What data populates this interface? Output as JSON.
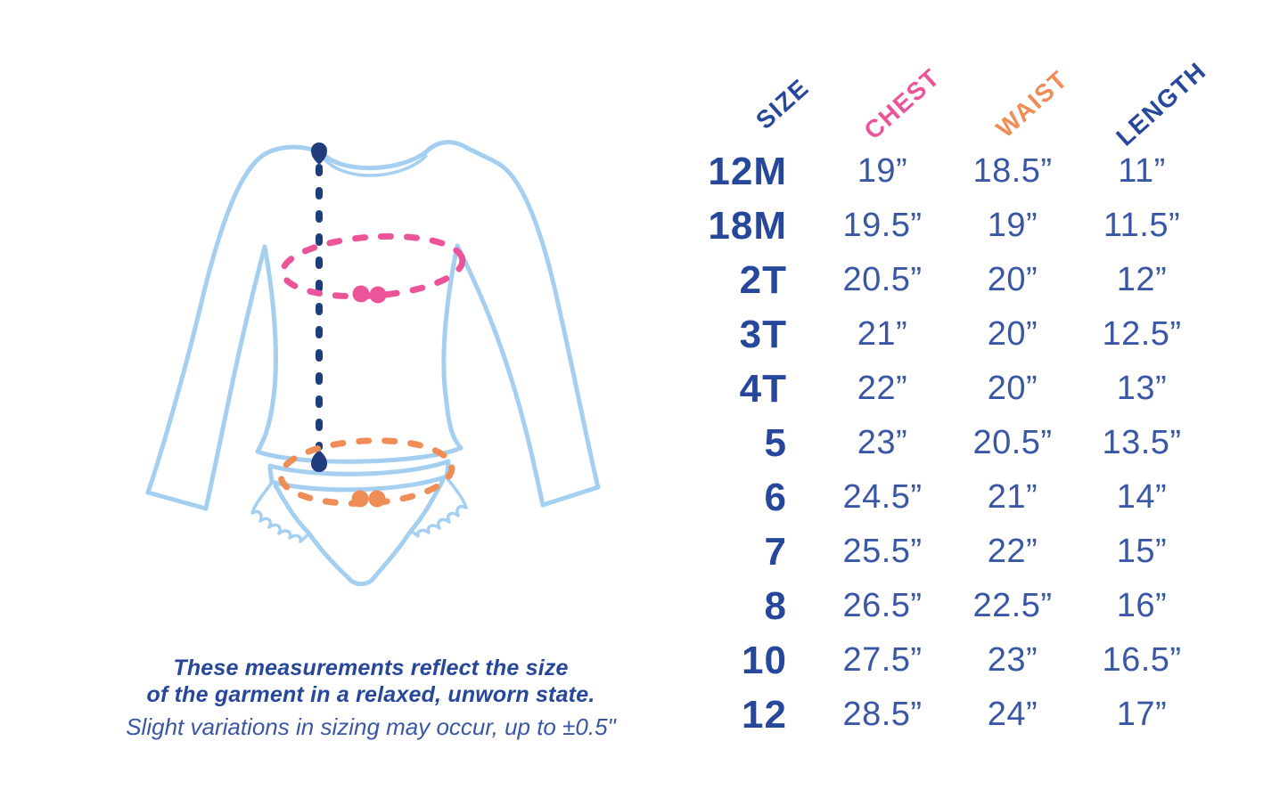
{
  "colors": {
    "navy": "#27479B",
    "value_blue": "#3A57A5",
    "dash_navy": "#1F3C7D",
    "pink": "#EC549A",
    "orange": "#F08C55",
    "light_blue": "#A5CFF1"
  },
  "chart_data": {
    "type": "table",
    "columns": [
      {
        "label": "SIZE",
        "color": "#27479B"
      },
      {
        "label": "CHEST",
        "color": "#EC549A"
      },
      {
        "label": "WAIST",
        "color": "#F08C55"
      },
      {
        "label": "LENGTH",
        "color": "#27479B"
      }
    ],
    "rows": [
      [
        "12M",
        "19”",
        "18.5”",
        "11”"
      ],
      [
        "18M",
        "19.5”",
        "19”",
        "11.5”"
      ],
      [
        "2T",
        "20.5”",
        "20”",
        "12”"
      ],
      [
        "3T",
        "21”",
        "20”",
        "12.5”"
      ],
      [
        "4T",
        "22”",
        "20”",
        "13”"
      ],
      [
        "5",
        "23”",
        "20.5”",
        "13.5”"
      ],
      [
        "6",
        "24.5”",
        "21”",
        "14”"
      ],
      [
        "7",
        "25.5”",
        "22”",
        "15”"
      ],
      [
        "8",
        "26.5”",
        "22.5”",
        "16”"
      ],
      [
        "10",
        "27.5”",
        "23”",
        "16.5”"
      ],
      [
        "12",
        "28.5”",
        "24”",
        "17”"
      ]
    ],
    "legend": {
      "chest_marker_color": "#EC549A",
      "waist_marker_color": "#F08C55",
      "length_marker_color": "#1F3C7D"
    }
  },
  "caption": {
    "line1": "These measurements reflect the size",
    "line2": "of the garment in a relaxed, unworn state.",
    "line3": "Slight variations in sizing may occur, up to ±0.5\""
  }
}
